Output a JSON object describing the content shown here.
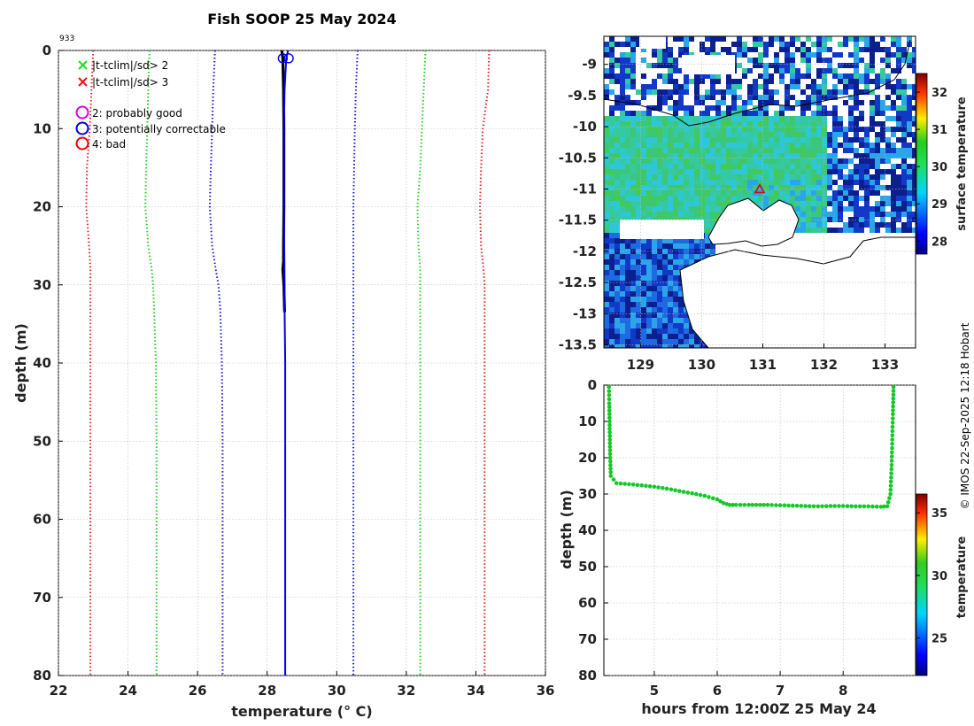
{
  "title": "Fish SOOP 25 May 2024",
  "profile_id": "933",
  "credit": "© IMOS 22-Sep-2025 12:18 Hobart",
  "legend": {
    "flag_sd2": "|t-tclim|/sd> 2",
    "flag_sd3": "|t-tclim|/sd> 3",
    "qc2": "2: probably good",
    "qc3": "3: potentially correctable",
    "qc4": "4: bad"
  },
  "colors": {
    "climatology_1sd": "#1a1acc",
    "climatology_2sd": "#22cc22",
    "climatology_3sd": "#dd2222",
    "profile_raw": "#000000",
    "profile_qc": "#0000ee",
    "track_points": "#14c828",
    "triangle_marker": "#cc1100",
    "flag_sd2": "#22dd22",
    "flag_sd3": "#ee1111",
    "qc2": "#dd00dd",
    "qc3": "#0000dd",
    "qc4": "#ee0000"
  },
  "chart_data": [
    {
      "type": "line",
      "name": "temperature-profile",
      "xlabel": "temperature (° C)",
      "ylabel": "depth (m)",
      "xlim": [
        22,
        36
      ],
      "ylim": [
        80,
        0
      ],
      "xticks": [
        "22",
        "24",
        "26",
        "28",
        "30",
        "32",
        "34",
        "36"
      ],
      "yticks": [
        "0",
        "10",
        "20",
        "30",
        "40",
        "50",
        "60",
        "70",
        "80"
      ],
      "depth": [
        0,
        5,
        10,
        15,
        20,
        25,
        28,
        30,
        33,
        40,
        50,
        60,
        70,
        80
      ],
      "series": [
        {
          "name": "clim-3sd-low",
          "style": "dotted",
          "values": [
            23.0,
            22.95,
            22.9,
            22.82,
            22.8,
            22.88,
            22.92,
            22.92,
            22.92,
            22.92,
            22.92,
            22.92,
            22.92,
            22.92
          ]
        },
        {
          "name": "clim-2sd-low",
          "style": "dotted",
          "values": [
            24.62,
            24.58,
            24.55,
            24.52,
            24.5,
            24.58,
            24.68,
            24.72,
            24.75,
            24.8,
            24.82,
            24.82,
            24.82,
            24.82
          ]
        },
        {
          "name": "clim-1sd-low",
          "style": "dotted",
          "values": [
            26.5,
            26.45,
            26.42,
            26.38,
            26.35,
            26.42,
            26.52,
            26.6,
            26.65,
            26.7,
            26.72,
            26.72,
            26.72,
            26.72
          ]
        },
        {
          "name": "clim-1sd-high",
          "style": "dotted",
          "values": [
            30.6,
            30.55,
            30.52,
            30.5,
            30.48,
            30.48,
            30.48,
            30.48,
            30.48,
            30.48,
            30.48,
            30.48,
            30.48,
            30.48
          ]
        },
        {
          "name": "clim-2sd-high",
          "style": "dotted",
          "values": [
            32.55,
            32.5,
            32.45,
            32.4,
            32.32,
            32.35,
            32.4,
            32.4,
            32.4,
            32.4,
            32.4,
            32.4,
            32.4,
            32.4
          ]
        },
        {
          "name": "clim-3sd-high",
          "style": "dotted",
          "values": [
            34.38,
            34.35,
            34.2,
            34.15,
            34.12,
            34.15,
            34.22,
            34.25,
            34.25,
            34.25,
            34.25,
            34.25,
            34.25,
            34.25
          ]
        }
      ],
      "raw_profile": {
        "depth": [
          0,
          1,
          5,
          10,
          20,
          25,
          27,
          28,
          30,
          33.5
        ],
        "temperature": [
          28.42,
          28.45,
          28.47,
          28.48,
          28.48,
          28.47,
          28.47,
          28.45,
          28.48,
          28.5
        ]
      },
      "qc_profile": {
        "depth": [
          0,
          1,
          5,
          10,
          20,
          30,
          33,
          40,
          50,
          60,
          70,
          80
        ],
        "temperature": [
          28.6,
          28.55,
          28.5,
          28.48,
          28.48,
          28.5,
          28.5,
          28.52,
          28.52,
          28.52,
          28.52,
          28.52
        ]
      },
      "markers": [
        {
          "name": "qc3-start",
          "temperature": 28.45,
          "depth": 1.0
        },
        {
          "name": "qc3-start-2",
          "temperature": 28.62,
          "depth": 1.0
        }
      ]
    },
    {
      "type": "heatmap",
      "name": "surface-temperature-map",
      "xlabel": "",
      "ylabel": "",
      "xlim": [
        128.4,
        133.5
      ],
      "ylim": [
        -13.55,
        -8.55
      ],
      "xticks": [
        "129",
        "130",
        "131",
        "132",
        "133"
      ],
      "yticks": [
        "-9",
        "-9.5",
        "-10",
        "-10.5",
        "-11",
        "-11.5",
        "-12",
        "-12.5",
        "-13",
        "-13.5"
      ],
      "colorbar_label": "surface temperature",
      "colorbar_ticks": [
        "28",
        "29",
        "30",
        "31",
        "32"
      ],
      "colorbar_range": [
        27.65,
        32.5
      ],
      "marker": {
        "lon": 130.95,
        "lat": -11.0
      }
    },
    {
      "type": "scatter",
      "name": "depth-time-track",
      "xlabel": "hours from 12:00Z 25 May 24",
      "ylabel": "depth (m)",
      "xlim": [
        4.2,
        9.15
      ],
      "ylim": [
        80,
        0
      ],
      "xticks": [
        "5",
        "6",
        "7",
        "8"
      ],
      "yticks": [
        "0",
        "10",
        "20",
        "30",
        "40",
        "50",
        "60",
        "70",
        "80"
      ],
      "colorbar_label": "temperature",
      "colorbar_ticks": [
        "25",
        "30",
        "35"
      ],
      "colorbar_range": [
        22,
        36.5
      ],
      "x": [
        4.28,
        4.285,
        4.29,
        4.295,
        4.3,
        4.31,
        4.4,
        4.6,
        4.8,
        5.0,
        5.2,
        5.4,
        5.6,
        5.8,
        6.0,
        6.1,
        6.2,
        6.3,
        6.5,
        6.8,
        7.0,
        7.2,
        7.4,
        7.6,
        7.8,
        8.0,
        8.2,
        8.4,
        8.6,
        8.7,
        8.75,
        8.77,
        8.78,
        8.79,
        8.8
      ],
      "y": [
        0.5,
        5,
        10,
        15,
        20,
        25,
        27,
        27.3,
        27.6,
        28.0,
        28.5,
        29.2,
        29.8,
        30.5,
        31.5,
        32.5,
        33.0,
        33.0,
        33.0,
        33.0,
        33.1,
        33.2,
        33.3,
        33.4,
        33.3,
        33.3,
        33.4,
        33.4,
        33.5,
        33.4,
        30,
        22,
        15,
        8,
        0.5
      ]
    }
  ]
}
